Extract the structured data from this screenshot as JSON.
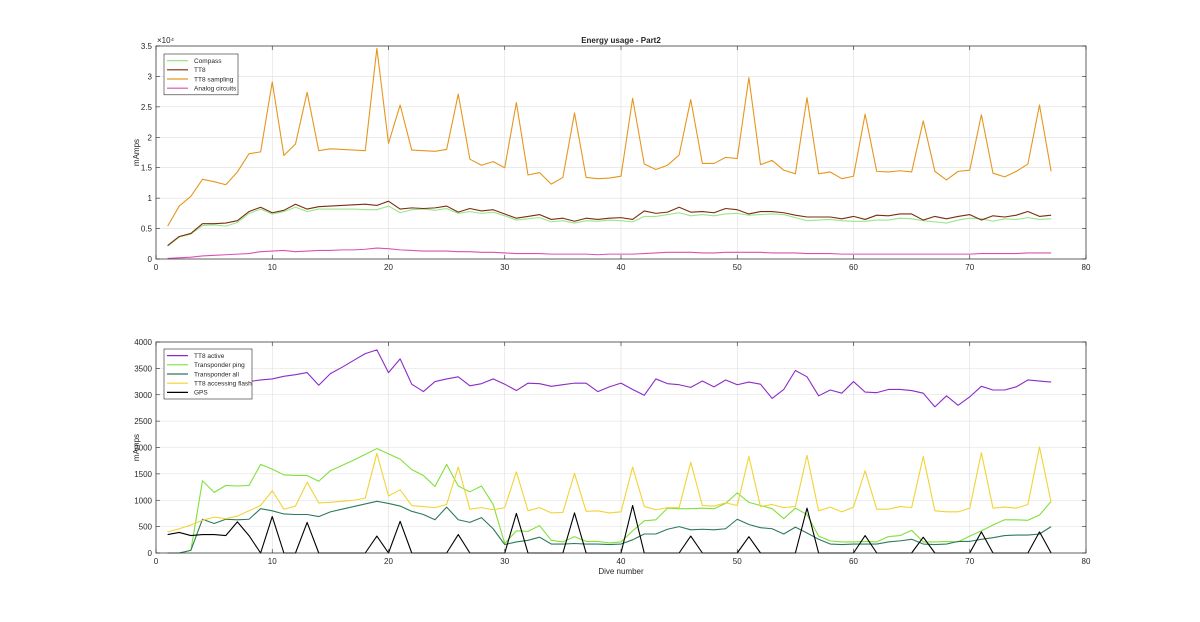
{
  "chart_data": [
    {
      "type": "line",
      "title": "Energy usage - Part2",
      "xlabel": "",
      "ylabel": "mAmps",
      "xlim": [
        0,
        80
      ],
      "ylim": [
        0,
        35000
      ],
      "xticks": [
        0,
        10,
        20,
        30,
        40,
        50,
        60,
        70,
        80
      ],
      "yticks": [
        0,
        5000,
        10000,
        15000,
        20000,
        25000,
        30000,
        35000
      ],
      "ytick_labels": [
        "0",
        "0.5",
        "1",
        "1.5",
        "2",
        "2.5",
        "3",
        "3.5"
      ],
      "yexponent": "×10⁴",
      "grid": true,
      "legend_location": "top-left",
      "x_start": 1,
      "series": [
        {
          "name": "Compass",
          "color": "#99e68c",
          "values": [
            2100,
            3600,
            4100,
            5500,
            5600,
            5400,
            6000,
            7500,
            8200,
            7400,
            7800,
            8500,
            7800,
            8200,
            8200,
            8200,
            8200,
            8100,
            8100,
            8700,
            7600,
            8100,
            8200,
            8000,
            8300,
            7500,
            7800,
            7500,
            7700,
            7100,
            6400,
            6600,
            6800,
            6100,
            6300,
            5900,
            6300,
            6200,
            6400,
            6300,
            6100,
            7000,
            7000,
            7300,
            7600,
            7100,
            7300,
            7100,
            7400,
            7500,
            7200,
            7300,
            7400,
            7300,
            6800,
            6300,
            6400,
            6500,
            6300,
            6200,
            6200,
            6400,
            6400,
            6700,
            6600,
            6300,
            6100,
            5900,
            6400,
            6700,
            6600,
            6200,
            6600,
            6500,
            6800,
            6500,
            6600
          ]
        },
        {
          "name": "TT8",
          "color": "#7a2e0d",
          "values": [
            2200,
            3700,
            4200,
            5800,
            5800,
            5900,
            6300,
            7800,
            8500,
            7600,
            8000,
            9000,
            8200,
            8600,
            8700,
            8800,
            8900,
            9000,
            8800,
            9500,
            8200,
            8400,
            8300,
            8400,
            8700,
            7700,
            8300,
            7900,
            8100,
            7400,
            6700,
            7000,
            7300,
            6500,
            6700,
            6200,
            6700,
            6500,
            6700,
            6800,
            6500,
            7900,
            7500,
            7700,
            8500,
            7700,
            7800,
            7600,
            8300,
            8100,
            7400,
            7800,
            7800,
            7600,
            7200,
            6900,
            6900,
            6900,
            6600,
            7000,
            6500,
            7200,
            7100,
            7400,
            7400,
            6400,
            7000,
            6600,
            7000,
            7300,
            6400,
            7100,
            6900,
            7200,
            7800,
            7000,
            7200
          ]
        },
        {
          "name": "TT8 sampling",
          "color": "#e6961e",
          "values": [
            5400,
            8700,
            10300,
            13100,
            12700,
            12200,
            14300,
            17300,
            17600,
            29100,
            17000,
            18900,
            27400,
            17800,
            18100,
            18000,
            17900,
            17800,
            34600,
            19000,
            25300,
            17900,
            17800,
            17700,
            18000,
            27100,
            16400,
            15400,
            16000,
            15000,
            25700,
            13800,
            14200,
            12300,
            13400,
            24000,
            13400,
            13200,
            13300,
            13600,
            26400,
            15600,
            14700,
            15400,
            17100,
            26200,
            15700,
            15700,
            16700,
            16500,
            29800,
            15500,
            16200,
            14600,
            14000,
            26500,
            14000,
            14300,
            13200,
            13600,
            23800,
            14400,
            14300,
            14500,
            14300,
            22700,
            14400,
            13000,
            14400,
            14600,
            23700,
            14100,
            13500,
            14400,
            15600,
            25300,
            14400
          ]
        },
        {
          "name": "Analog circuits",
          "color": "#d952b3",
          "values": [
            100,
            200,
            300,
            500,
            600,
            700,
            800,
            900,
            1200,
            1300,
            1400,
            1200,
            1300,
            1400,
            1400,
            1500,
            1500,
            1600,
            1800,
            1700,
            1500,
            1400,
            1300,
            1300,
            1300,
            1200,
            1200,
            1100,
            1100,
            1000,
            900,
            900,
            900,
            800,
            800,
            800,
            800,
            700,
            800,
            800,
            800,
            900,
            1000,
            1100,
            1100,
            1100,
            1000,
            1000,
            1100,
            1100,
            1100,
            1100,
            1000,
            1000,
            1000,
            900,
            900,
            900,
            800,
            800,
            800,
            800,
            800,
            800,
            800,
            800,
            800,
            800,
            800,
            800,
            900,
            900,
            900,
            900,
            1000,
            1000,
            1000
          ]
        }
      ]
    },
    {
      "type": "line",
      "title": "",
      "xlabel": "Dive number",
      "ylabel": "mAmps",
      "xlim": [
        0,
        80
      ],
      "ylim": [
        0,
        4000
      ],
      "xticks": [
        0,
        10,
        20,
        30,
        40,
        50,
        60,
        70,
        80
      ],
      "yticks": [
        0,
        500,
        1000,
        1500,
        2000,
        2500,
        3000,
        3500,
        4000
      ],
      "ytick_labels": [
        "0",
        "500",
        "1000",
        "1500",
        "2000",
        "2500",
        "3000",
        "3500",
        "4000"
      ],
      "grid": true,
      "legend_location": "top-left",
      "x_start": 1,
      "series": [
        {
          "name": "TT8 active",
          "color": "#8c2bc7",
          "values": [
            2950,
            3050,
            3100,
            3150,
            3150,
            3150,
            3200,
            3250,
            3280,
            3300,
            3350,
            3380,
            3420,
            3180,
            3400,
            3520,
            3650,
            3780,
            3850,
            3420,
            3680,
            3200,
            3060,
            3250,
            3300,
            3340,
            3170,
            3210,
            3300,
            3200,
            3080,
            3220,
            3210,
            3160,
            3190,
            3220,
            3220,
            3060,
            3150,
            3220,
            3100,
            2990,
            3300,
            3210,
            3190,
            3140,
            3260,
            3150,
            3280,
            3190,
            3240,
            3200,
            2930,
            3100,
            3460,
            3340,
            2980,
            3090,
            3030,
            3250,
            3050,
            3040,
            3100,
            3100,
            3080,
            3030,
            2770,
            2980,
            2800,
            2960,
            3160,
            3090,
            3090,
            3150,
            3280,
            3260,
            3240
          ]
        },
        {
          "name": "Transponder ping",
          "color": "#80e03c",
          "values": [
            0,
            0,
            50,
            1370,
            1150,
            1280,
            1270,
            1280,
            1680,
            1590,
            1480,
            1470,
            1470,
            1360,
            1560,
            1660,
            1760,
            1870,
            1980,
            1880,
            1780,
            1580,
            1470,
            1260,
            1680,
            1270,
            1160,
            1270,
            920,
            180,
            420,
            410,
            520,
            240,
            210,
            310,
            220,
            220,
            190,
            210,
            420,
            610,
            630,
            850,
            840,
            840,
            850,
            840,
            940,
            1140,
            960,
            900,
            840,
            650,
            850,
            730,
            320,
            230,
            210,
            210,
            220,
            210,
            310,
            330,
            430,
            210,
            210,
            220,
            210,
            320,
            420,
            530,
            630,
            630,
            620,
            720,
            980
          ]
        },
        {
          "name": "Transponder all",
          "color": "#2e7a5a",
          "values": [
            0,
            0,
            50,
            640,
            560,
            640,
            630,
            640,
            840,
            800,
            740,
            730,
            730,
            690,
            780,
            830,
            880,
            930,
            980,
            940,
            890,
            790,
            730,
            630,
            870,
            630,
            580,
            670,
            460,
            160,
            210,
            240,
            300,
            170,
            170,
            180,
            170,
            170,
            160,
            170,
            250,
            360,
            360,
            450,
            500,
            440,
            450,
            440,
            460,
            640,
            540,
            480,
            460,
            360,
            490,
            380,
            260,
            170,
            160,
            170,
            170,
            170,
            210,
            230,
            260,
            170,
            160,
            170,
            220,
            220,
            260,
            290,
            330,
            340,
            340,
            360,
            500
          ]
        },
        {
          "name": "TT8 accessing flash",
          "color": "#f2d335",
          "values": [
            400,
            460,
            530,
            620,
            680,
            650,
            700,
            800,
            900,
            1180,
            830,
            890,
            1340,
            950,
            960,
            980,
            1000,
            1040,
            1890,
            1080,
            1200,
            900,
            880,
            860,
            920,
            1630,
            830,
            860,
            820,
            860,
            1540,
            800,
            860,
            760,
            770,
            1510,
            790,
            800,
            760,
            780,
            1630,
            880,
            820,
            860,
            860,
            1720,
            900,
            890,
            950,
            900,
            1830,
            880,
            920,
            860,
            880,
            1850,
            800,
            870,
            780,
            870,
            1560,
            830,
            830,
            880,
            860,
            1830,
            800,
            780,
            780,
            850,
            1900,
            850,
            870,
            850,
            920,
            2010,
            960
          ]
        },
        {
          "name": "GPS",
          "color": "#000000",
          "values": [
            350,
            390,
            330,
            350,
            350,
            330,
            590,
            330,
            0,
            690,
            0,
            0,
            580,
            0,
            0,
            0,
            0,
            0,
            320,
            0,
            600,
            0,
            0,
            0,
            0,
            350,
            0,
            0,
            0,
            0,
            750,
            0,
            0,
            0,
            0,
            760,
            0,
            0,
            0,
            0,
            900,
            0,
            0,
            0,
            0,
            320,
            0,
            0,
            0,
            0,
            310,
            0,
            0,
            0,
            0,
            850,
            0,
            0,
            0,
            0,
            330,
            0,
            0,
            0,
            0,
            300,
            0,
            0,
            0,
            0,
            400,
            0,
            0,
            0,
            0,
            400,
            0
          ]
        }
      ]
    }
  ]
}
